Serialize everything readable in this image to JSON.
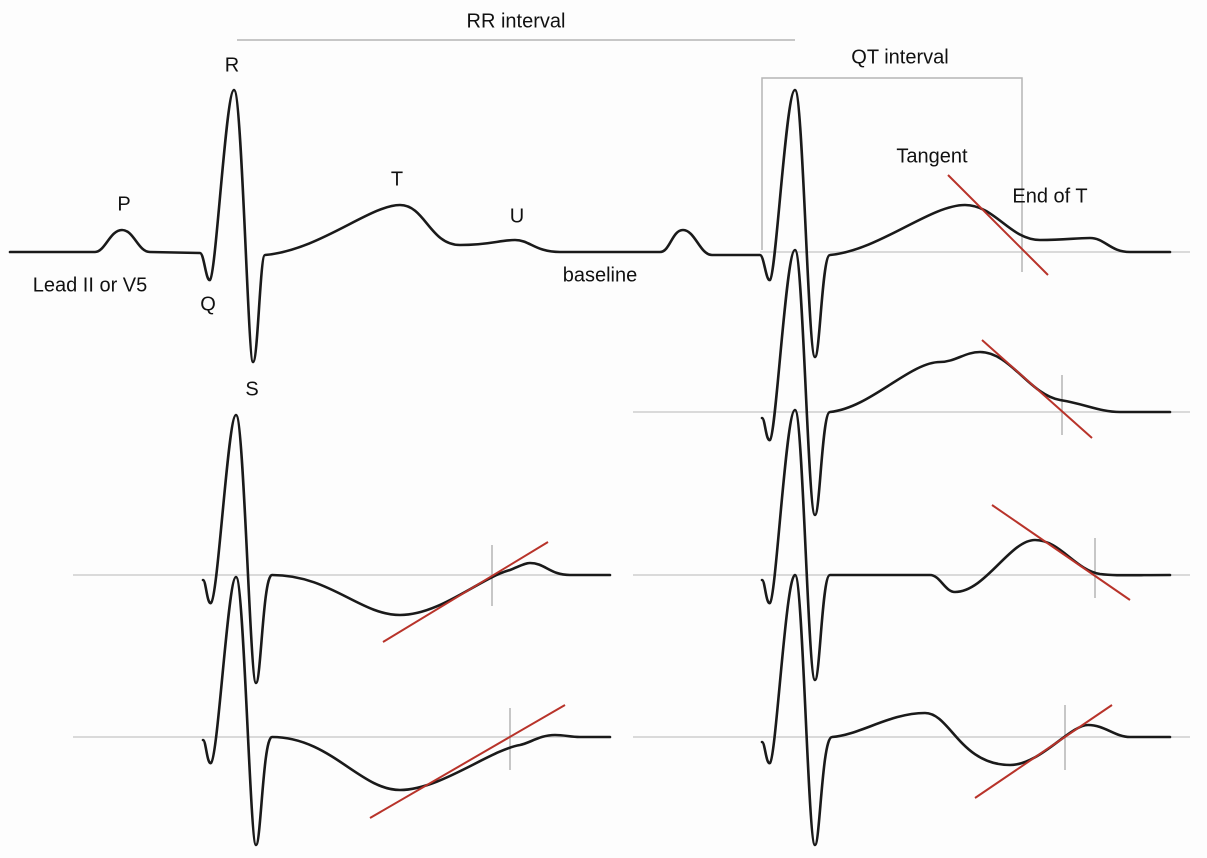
{
  "intervals": {
    "rr": "RR interval",
    "qt": "QT interval"
  },
  "waves": {
    "p": "P",
    "q": "Q",
    "r": "R",
    "s": "S",
    "t": "T",
    "u": "U"
  },
  "labels": {
    "lead": "Lead II or V5",
    "baseline": "baseline",
    "tangent": "Tangent",
    "end_of_t": "End of T"
  }
}
